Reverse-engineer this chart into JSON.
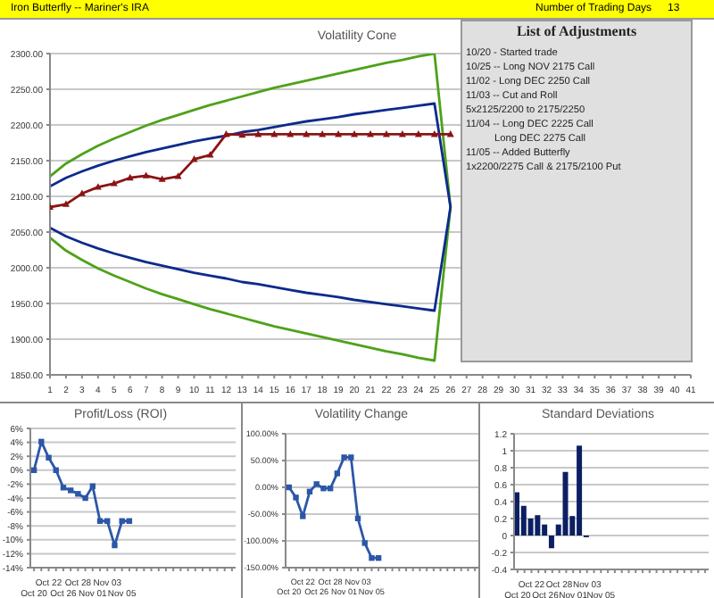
{
  "chart_data": [
    {
      "type": "other",
      "annotations": [
        "Iron Butterfly -- Mariner's IRA",
        "Number of Trading Days",
        "13"
      ]
    },
    {
      "type": "line",
      "title": "Volatility Cone",
      "xlim": [
        1,
        41
      ],
      "xticks": [
        1,
        2,
        3,
        4,
        5,
        6,
        7,
        8,
        9,
        10,
        11,
        12,
        13,
        14,
        15,
        16,
        17,
        18,
        19,
        20,
        21,
        22,
        23,
        24,
        25,
        26,
        27,
        28,
        29,
        30,
        31,
        32,
        33,
        34,
        35,
        36,
        37,
        38,
        39,
        40,
        41
      ],
      "series": [
        {
          "color": "#4ea21a",
          "x": [
            1,
            2,
            3,
            4,
            5,
            6,
            7,
            8,
            9,
            10,
            11,
            12,
            13,
            14,
            15,
            16,
            17,
            18,
            19,
            20,
            21,
            22,
            23,
            24,
            25,
            26,
            25,
            24,
            23,
            22,
            21,
            20,
            19,
            18,
            17,
            16,
            15,
            14,
            13,
            12,
            11,
            10,
            9,
            8,
            7,
            6,
            5,
            4,
            3,
            2,
            1
          ],
          "values": [
            2128,
            2146,
            2159,
            2171,
            2181,
            2190,
            2199,
            2207,
            2214,
            2221,
            2228,
            2234,
            2240,
            2246,
            2252,
            2257,
            2262,
            2267,
            2272,
            2277,
            2282,
            2287,
            2291,
            2296,
            2300,
            2085,
            1870,
            1874,
            1879,
            1883,
            1888,
            1893,
            1898,
            1903,
            1908,
            1913,
            1918,
            1924,
            1930,
            1936,
            1942,
            1949,
            1956,
            1963,
            1971,
            1980,
            1989,
            1999,
            2011,
            2024,
            2042
          ]
        },
        {
          "color": "#0d2a8c",
          "x": [
            1,
            2,
            3,
            4,
            5,
            6,
            7,
            8,
            9,
            10,
            11,
            12,
            13,
            14,
            15,
            16,
            17,
            18,
            19,
            20,
            21,
            22,
            23,
            24,
            25,
            26,
            25,
            24,
            23,
            22,
            21,
            20,
            19,
            18,
            17,
            16,
            15,
            14,
            13,
            12,
            11,
            10,
            9,
            8,
            7,
            6,
            5,
            4,
            3,
            2,
            1
          ],
          "values": [
            2114,
            2126,
            2135,
            2143,
            2150,
            2156,
            2162,
            2167,
            2172,
            2177,
            2181,
            2185,
            2190,
            2193,
            2197,
            2201,
            2205,
            2208,
            2211,
            2215,
            2218,
            2221,
            2224,
            2227,
            2230,
            2085,
            1940,
            1943,
            1946,
            1949,
            1952,
            1955,
            1959,
            1962,
            1965,
            1969,
            1973,
            1977,
            1980,
            1985,
            1989,
            1993,
            1998,
            2003,
            2008,
            2014,
            2020,
            2027,
            2035,
            2044,
            2056
          ]
        },
        {
          "color": "#8b1414",
          "marker": "triangle",
          "x": [
            1,
            2,
            3,
            4,
            5,
            6,
            7,
            8,
            9,
            10,
            11,
            12,
            13,
            14,
            15,
            16,
            17,
            18,
            19,
            20,
            21,
            22,
            23,
            24,
            25,
            26
          ],
          "values": [
            2085,
            2089,
            2104,
            2113,
            2118,
            2126,
            2129,
            2124,
            2128,
            2152,
            2158,
            2187,
            2186,
            2187,
            2187,
            2187,
            2187,
            2187,
            2187,
            2187,
            2187,
            2187,
            2187,
            2187,
            2187,
            2187
          ]
        }
      ],
      "ylim": [
        1850,
        2300
      ],
      "yticks": [
        {
          "value": 1850,
          "label": "1850.00"
        },
        {
          "value": 1900,
          "label": "1900.00"
        },
        {
          "value": 1950,
          "label": "1950.00"
        },
        {
          "value": 2000,
          "label": "2000.00"
        },
        {
          "value": 2050,
          "label": "2050.00"
        },
        {
          "value": 2100,
          "label": "2100.00"
        },
        {
          "value": 2150,
          "label": "2150.00"
        },
        {
          "value": 2200,
          "label": "2200.00"
        },
        {
          "value": 2250,
          "label": "2250.00"
        },
        {
          "value": 2300,
          "label": "2300.00"
        }
      ],
      "grid": "y"
    },
    {
      "type": "other",
      "title": "List of Adjustments",
      "annotations": [
        "10/20 - Started trade",
        "10/25 -- Long NOV 2175 Call",
        "11/02 -  Long DEC 2250 Call",
        "11/03 -- Cut and Roll",
        "5x2125/2200 to 2175/2250",
        "11/04 -- Long DEC 2225 Call",
        "Long DEC 2275 Call",
        "11/05 -- Added Butterfly",
        "1x2200/2275 Call & 2175/2100 Put"
      ]
    },
    {
      "type": "line",
      "title": "Profit/Loss (ROI)",
      "categories": [
        "Oct 20",
        null,
        "Oct 22",
        null,
        "Oct 26",
        null,
        "Oct 28",
        null,
        "Nov 01",
        null,
        "Nov 03",
        null,
        "Nov 05",
        null,
        null,
        null,
        null,
        null,
        null,
        null,
        null,
        null,
        null,
        null,
        null,
        null,
        null,
        null
      ],
      "series": [
        {
          "color": "#2c57a8",
          "marker": "square",
          "values": [
            0,
            4.1,
            1.8,
            0,
            -2.5,
            -2.9,
            -3.4,
            -4,
            -2.3,
            -7.3,
            -7.3,
            -10.8,
            -7.3,
            -7.3,
            null,
            null,
            null,
            null,
            null,
            null,
            null,
            null,
            null,
            null,
            null,
            null,
            null,
            null
          ]
        }
      ],
      "ylim": [
        -14,
        6
      ],
      "yticks": [
        {
          "value": -14,
          "label": "-14%"
        },
        {
          "value": -12,
          "label": "-12%"
        },
        {
          "value": -10,
          "label": "-10%"
        },
        {
          "value": -8,
          "label": "-8%"
        },
        {
          "value": -6,
          "label": "-6%"
        },
        {
          "value": -4,
          "label": "-4%"
        },
        {
          "value": -2,
          "label": "-2%"
        },
        {
          "value": 0,
          "label": "0%"
        },
        {
          "value": 2,
          "label": "2%"
        },
        {
          "value": 4,
          "label": "4%"
        },
        {
          "value": 6,
          "label": "6%"
        }
      ],
      "grid": "y"
    },
    {
      "type": "line",
      "title": "Volatility Change",
      "categories": [
        "Oct 20",
        null,
        "Oct 22",
        null,
        "Oct 26",
        null,
        "Oct 28",
        null,
        "Nov 01",
        null,
        "Nov 03",
        null,
        "Nov 05",
        null,
        null,
        null,
        null,
        null,
        null,
        null,
        null,
        null,
        null,
        null,
        null,
        null,
        null,
        null
      ],
      "series": [
        {
          "color": "#2c57a8",
          "marker": "square",
          "values": [
            0,
            -19,
            -54,
            -8,
            6,
            -2,
            -2,
            26,
            56,
            56,
            -58,
            -104,
            -132,
            -132,
            null,
            null,
            null,
            null,
            null,
            null,
            null,
            null,
            null,
            null,
            null,
            null,
            null,
            null
          ]
        }
      ],
      "ylim": [
        -150,
        100
      ],
      "yticks": [
        {
          "value": -150,
          "label": "-150.00%"
        },
        {
          "value": -100,
          "label": "-100.00%"
        },
        {
          "value": -50,
          "label": "-50.00%"
        },
        {
          "value": 0,
          "label": "0.00%"
        },
        {
          "value": 50,
          "label": "50.00%"
        },
        {
          "value": 100,
          "label": "100.00%"
        }
      ],
      "grid": "y"
    },
    {
      "type": "bar",
      "title": "Standard Deviations",
      "categories": [
        "Oct 20",
        null,
        "Oct 22",
        null,
        "Oct 26",
        null,
        "Oct 28",
        null,
        "Nov 01",
        null,
        "Nov 03",
        null,
        "Nov 05",
        null,
        null,
        null,
        null,
        null,
        null,
        null,
        null,
        null,
        null,
        null,
        null,
        null,
        null,
        null
      ],
      "series": [
        {
          "color": "#0c1f63",
          "values": [
            0.51,
            0.35,
            0.2,
            0.24,
            0.13,
            -0.15,
            0.13,
            0.75,
            0.23,
            1.06,
            -0.02,
            null,
            null,
            null,
            null,
            null,
            null,
            null,
            null,
            null,
            null,
            null,
            null,
            null,
            null,
            null,
            null,
            null
          ]
        }
      ],
      "ylim": [
        -0.4,
        1.2
      ],
      "yticks": [
        -0.4,
        -0.2,
        0,
        0.2,
        0.4,
        0.6,
        0.8,
        1,
        1.2
      ],
      "grid": "y"
    }
  ]
}
